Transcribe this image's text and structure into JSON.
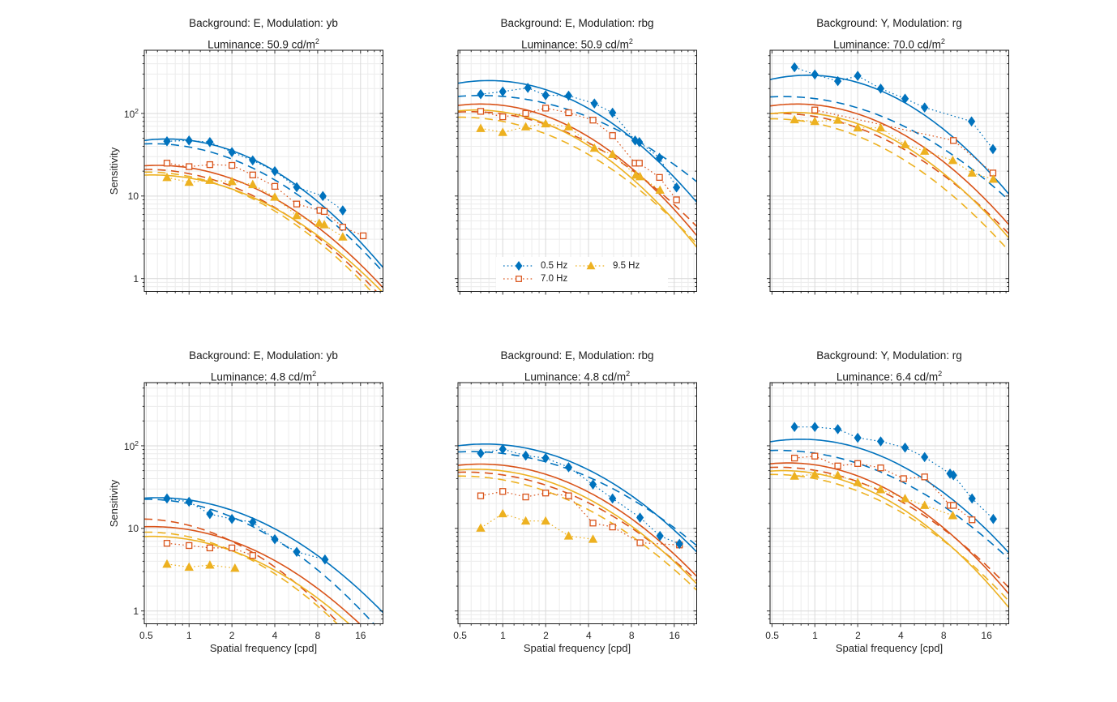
{
  "figure": {
    "background": "#ffffff",
    "unit_superscript": "2",
    "ylabel": "Sensitivity",
    "xlabel": "Spatial frequency [cpd]",
    "x_scale": "log",
    "y_scale": "log",
    "xlim": [
      0.485,
      23
    ],
    "ylim": [
      0.7,
      582
    ],
    "xticks": [
      0.5,
      1,
      2,
      4,
      8,
      16
    ],
    "yticks": [
      1,
      10,
      100
    ],
    "x_minor_gridlines": [
      0.6,
      0.7,
      0.8,
      0.9,
      1.2,
      1.4,
      1.6,
      1.8,
      2.5,
      3,
      3.5,
      5,
      6,
      7,
      9,
      10,
      12,
      14,
      18,
      20,
      22
    ],
    "y_minor_gridlines": [
      0.8,
      0.9,
      2,
      3,
      4,
      5,
      6,
      7,
      8,
      9,
      20,
      30,
      40,
      50,
      60,
      70,
      80,
      90,
      200,
      300,
      400,
      500
    ],
    "colors": {
      "blue": "#0072BD",
      "red": "#D95319",
      "yellow": "#EDB120",
      "grid_major": "#d9d9d9",
      "grid_minor": "#ececec",
      "axis": "#1a1a1a",
      "text": "#262626"
    },
    "legend": {
      "position": "inside bottom of top-middle subplot",
      "items": [
        {
          "label": "0.5 Hz",
          "marker": "diamond",
          "line": "dotted",
          "color": "#0072BD"
        },
        {
          "label": "7.0 Hz",
          "marker": "square",
          "line": "dotted",
          "color": "#D95319"
        },
        {
          "label": "9.5 Hz",
          "marker": "triangle",
          "line": "dotted",
          "color": "#EDB120"
        }
      ]
    }
  },
  "chart_data": [
    {
      "type": "line",
      "title": "Background: E, Modulation: yb",
      "luminance_label": "Luminance: 50.9 cd/m",
      "series": [
        {
          "name": "0.5 Hz",
          "color": "#0072BD",
          "marker": "diamond",
          "x": [
            0.7,
            1,
            1.4,
            2,
            2.8,
            4,
            5.7,
            8.7,
            12
          ],
          "y": [
            46,
            47,
            45,
            34,
            27,
            20,
            12.8,
            10,
            6.7
          ]
        },
        {
          "name": "7.0 Hz",
          "color": "#D95319",
          "marker": "square",
          "x": [
            0.7,
            1,
            1.4,
            2,
            2.8,
            4,
            5.7,
            8.3,
            8.9,
            12,
            16.7
          ],
          "y": [
            25,
            22.7,
            24,
            23.5,
            18,
            13.1,
            8,
            6.7,
            6.5,
            4.2,
            3.3
          ]
        },
        {
          "name": "9.5 Hz",
          "color": "#EDB120",
          "marker": "triangle",
          "x": [
            0.7,
            1,
            1.4,
            2,
            2.8,
            4,
            5.7,
            8.2,
            8.9,
            12
          ],
          "y": [
            16.8,
            14.7,
            15.5,
            15,
            13.8,
            9.7,
            5.8,
            4.7,
            4.5,
            3.2
          ]
        }
      ],
      "fits": [
        {
          "series": "0.5 Hz",
          "style": "solid",
          "color": "#0072BD",
          "peak_sensitivity": 49,
          "peak_frequency": 0.7,
          "log_sigma": 0.86
        },
        {
          "series": "0.5 Hz",
          "style": "dashed",
          "color": "#0072BD",
          "peak_sensitivity": 43,
          "peak_frequency": 0.55,
          "log_sigma": 0.92
        },
        {
          "series": "7.0 Hz",
          "style": "solid",
          "color": "#D95319",
          "peak_sensitivity": 23.5,
          "peak_frequency": 0.6,
          "log_sigma": 0.92
        },
        {
          "series": "7.0 Hz",
          "style": "dashed",
          "color": "#D95319",
          "peak_sensitivity": 21,
          "peak_frequency": 0.5,
          "log_sigma": 0.94
        },
        {
          "series": "9.5 Hz",
          "style": "solid",
          "color": "#EDB120",
          "peak_sensitivity": 18,
          "peak_frequency": 0.55,
          "log_sigma": 0.96
        },
        {
          "series": "9.5 Hz",
          "style": "dashed",
          "color": "#EDB120",
          "peak_sensitivity": 19.5,
          "peak_frequency": 0.5,
          "log_sigma": 0.93
        }
      ]
    },
    {
      "type": "line",
      "title": "Background: E, Modulation: rbg",
      "luminance_label": "Luminance: 50.9 cd/m",
      "series": [
        {
          "name": "0.5 Hz",
          "color": "#0072BD",
          "marker": "diamond",
          "x": [
            0.7,
            1,
            1.5,
            2,
            2.9,
            4.4,
            5.9,
            8.5,
            9.1,
            12.6,
            16.6
          ],
          "y": [
            171,
            184,
            204,
            166,
            164,
            132,
            102,
            47,
            45,
            29,
            12.7
          ]
        },
        {
          "name": "7.0 Hz",
          "color": "#D95319",
          "marker": "square",
          "x": [
            0.7,
            1,
            1.45,
            2,
            2.9,
            4.3,
            5.9,
            8.5,
            9.1,
            12.6,
            16.6
          ],
          "y": [
            106,
            91,
            100,
            116,
            102,
            83,
            54,
            25,
            25,
            16.8,
            9
          ]
        },
        {
          "name": "9.5 Hz",
          "color": "#EDB120",
          "marker": "triangle",
          "x": [
            0.7,
            1,
            1.45,
            2,
            2.9,
            4.4,
            5.9,
            8.6,
            9.2,
            12.7
          ],
          "y": [
            66,
            59,
            69,
            75,
            69,
            38,
            32,
            18,
            17.2,
            11.8
          ]
        }
      ],
      "fits": [
        {
          "series": "0.5 Hz",
          "style": "solid",
          "color": "#0072BD",
          "peak_sensitivity": 250,
          "peak_frequency": 0.8,
          "log_sigma": 0.85
        },
        {
          "series": "0.5 Hz",
          "style": "dashed",
          "color": "#0072BD",
          "peak_sensitivity": 165,
          "peak_frequency": 0.7,
          "log_sigma": 1.05
        },
        {
          "series": "7.0 Hz",
          "style": "solid",
          "color": "#D95319",
          "peak_sensitivity": 130,
          "peak_frequency": 0.7,
          "log_sigma": 0.85
        },
        {
          "series": "7.0 Hz",
          "style": "dashed",
          "color": "#D95319",
          "peak_sensitivity": 105,
          "peak_frequency": 0.6,
          "log_sigma": 0.95
        },
        {
          "series": "9.5 Hz",
          "style": "solid",
          "color": "#EDB120",
          "peak_sensitivity": 110,
          "peak_frequency": 0.65,
          "log_sigma": 0.85
        },
        {
          "series": "9.5 Hz",
          "style": "dashed",
          "color": "#EDB120",
          "peak_sensitivity": 90,
          "peak_frequency": 0.5,
          "log_sigma": 0.95
        }
      ]
    },
    {
      "type": "line",
      "title": "Background: Y, Modulation: rg",
      "luminance_label": "Luminance: 70.0 cd/m",
      "series": [
        {
          "name": "0.5 Hz",
          "color": "#0072BD",
          "marker": "diamond",
          "x": [
            0.72,
            1,
            1.45,
            2,
            2.9,
            4.3,
            5.9,
            12.6,
            17.8
          ],
          "y": [
            362,
            296,
            246,
            285,
            200,
            151,
            118,
            80,
            37
          ]
        },
        {
          "name": "7.0 Hz",
          "color": "#D95319",
          "marker": "square",
          "x": [
            1,
            9.4,
            17.8
          ],
          "y": [
            110,
            47,
            19
          ]
        },
        {
          "name": "9.5 Hz",
          "color": "#EDB120",
          "marker": "triangle",
          "x": [
            0.72,
            1,
            1.45,
            2,
            2.9,
            4.3,
            5.9,
            9.3,
            12.7,
            17.9
          ],
          "y": [
            84,
            80,
            83,
            67,
            67,
            42,
            35,
            27,
            19,
            16
          ]
        }
      ],
      "fits": [
        {
          "series": "0.5 Hz",
          "style": "solid",
          "color": "#0072BD",
          "peak_sensitivity": 290,
          "peak_frequency": 0.9,
          "log_sigma": 0.83
        },
        {
          "series": "0.5 Hz",
          "style": "dashed",
          "color": "#0072BD",
          "peak_sensitivity": 160,
          "peak_frequency": 0.6,
          "log_sigma": 1.0
        },
        {
          "series": "7.0 Hz",
          "style": "solid",
          "color": "#D95319",
          "peak_sensitivity": 130,
          "peak_frequency": 0.75,
          "log_sigma": 0.87
        },
        {
          "series": "7.0 Hz",
          "style": "dashed",
          "color": "#D95319",
          "peak_sensitivity": 100,
          "peak_frequency": 0.55,
          "log_sigma": 0.95
        },
        {
          "series": "9.5 Hz",
          "style": "solid",
          "color": "#EDB120",
          "peak_sensitivity": 103,
          "peak_frequency": 0.7,
          "log_sigma": 0.87
        },
        {
          "series": "9.5 Hz",
          "style": "dashed",
          "color": "#EDB120",
          "peak_sensitivity": 86,
          "peak_frequency": 0.5,
          "log_sigma": 0.93
        }
      ]
    },
    {
      "type": "line",
      "title": "Background: E, Modulation: yb",
      "luminance_label": "Luminance: 4.8 cd/m",
      "series": [
        {
          "name": "0.5 Hz",
          "color": "#0072BD",
          "marker": "diamond",
          "x": [
            0.7,
            1,
            1.4,
            2,
            2.8,
            4,
            5.7,
            9
          ],
          "y": [
            23,
            21,
            14.9,
            13,
            11.9,
            7.4,
            5.2,
            4.2
          ]
        },
        {
          "name": "7.0 Hz",
          "color": "#D95319",
          "marker": "square",
          "x": [
            0.7,
            1,
            1.4,
            2,
            2.8
          ],
          "y": [
            6.6,
            6.2,
            5.8,
            5.8,
            4.7
          ]
        },
        {
          "name": "9.5 Hz",
          "color": "#EDB120",
          "marker": "triangle",
          "x": [
            0.7,
            1,
            1.4,
            2.1
          ],
          "y": [
            3.7,
            3.4,
            3.6,
            3.3
          ]
        }
      ],
      "fits": [
        {
          "series": "0.5 Hz",
          "style": "solid",
          "color": "#0072BD",
          "peak_sensitivity": 23.5,
          "peak_frequency": 0.6,
          "log_sigma": 0.95
        },
        {
          "series": "0.5 Hz",
          "style": "dashed",
          "color": "#0072BD",
          "peak_sensitivity": 22.5,
          "peak_frequency": 0.5,
          "log_sigma": 0.92
        },
        {
          "series": "7.0 Hz",
          "style": "solid",
          "color": "#D95319",
          "peak_sensitivity": 10.5,
          "peak_frequency": 0.55,
          "log_sigma": 0.95
        },
        {
          "series": "7.0 Hz",
          "style": "dashed",
          "color": "#D95319",
          "peak_sensitivity": 13,
          "peak_frequency": 0.45,
          "log_sigma": 0.88
        },
        {
          "series": "9.5 Hz",
          "style": "solid",
          "color": "#EDB120",
          "peak_sensitivity": 8,
          "peak_frequency": 0.55,
          "log_sigma": 0.95
        },
        {
          "series": "9.5 Hz",
          "style": "dashed",
          "color": "#EDB120",
          "peak_sensitivity": 9,
          "peak_frequency": 0.5,
          "log_sigma": 0.9
        }
      ]
    },
    {
      "type": "line",
      "title": "Background: E, Modulation: rbg",
      "luminance_label": "Luminance: 4.8 cd/m",
      "series": [
        {
          "name": "0.5 Hz",
          "color": "#0072BD",
          "marker": "diamond",
          "x": [
            0.7,
            1,
            1.45,
            2,
            2.9,
            4.3,
            5.9,
            9.2,
            12.7,
            17.4
          ],
          "y": [
            81,
            91,
            76,
            71,
            55,
            34,
            23,
            13.5,
            8.1,
            6.5
          ]
        },
        {
          "name": "7.0 Hz",
          "color": "#D95319",
          "marker": "square",
          "x": [
            0.7,
            1,
            1.45,
            2,
            2.9,
            4.3,
            5.9,
            9.2,
            17.4
          ],
          "y": [
            24.8,
            28,
            24,
            26.8,
            24.8,
            11.6,
            10.4,
            6.7,
            6.3
          ]
        },
        {
          "name": "9.5 Hz",
          "color": "#EDB120",
          "marker": "triangle",
          "x": [
            0.7,
            1,
            1.45,
            2,
            2.9,
            4.3
          ],
          "y": [
            10.1,
            15.1,
            12.3,
            12.3,
            8.1,
            7.4
          ]
        }
      ],
      "fits": [
        {
          "series": "0.5 Hz",
          "style": "solid",
          "color": "#0072BD",
          "peak_sensitivity": 105,
          "peak_frequency": 0.75,
          "log_sigma": 0.92
        },
        {
          "series": "0.5 Hz",
          "style": "dashed",
          "color": "#0072BD",
          "peak_sensitivity": 85,
          "peak_frequency": 0.6,
          "log_sigma": 1.05
        },
        {
          "series": "7.0 Hz",
          "style": "solid",
          "color": "#D95319",
          "peak_sensitivity": 60,
          "peak_frequency": 0.7,
          "log_sigma": 0.92
        },
        {
          "series": "7.0 Hz",
          "style": "dashed",
          "color": "#D95319",
          "peak_sensitivity": 48,
          "peak_frequency": 0.55,
          "log_sigma": 1.0
        },
        {
          "series": "9.5 Hz",
          "style": "solid",
          "color": "#EDB120",
          "peak_sensitivity": 52,
          "peak_frequency": 0.65,
          "log_sigma": 0.93
        },
        {
          "series": "9.5 Hz",
          "style": "dashed",
          "color": "#EDB120",
          "peak_sensitivity": 43,
          "peak_frequency": 0.5,
          "log_sigma": 1.0
        }
      ]
    },
    {
      "type": "line",
      "title": "Background: Y, Modulation: rg",
      "luminance_label": "Luminance: 6.4 cd/m",
      "series": [
        {
          "name": "0.5 Hz",
          "color": "#0072BD",
          "marker": "diamond",
          "x": [
            0.72,
            1,
            1.45,
            2,
            2.9,
            4.3,
            5.9,
            8.9,
            9.4,
            12.7,
            17.9
          ],
          "y": [
            169,
            169,
            159,
            125,
            113,
            95,
            73,
            46,
            44,
            23,
            13
          ]
        },
        {
          "name": "7.0 Hz",
          "color": "#D95319",
          "marker": "square",
          "x": [
            0.72,
            1,
            1.45,
            2,
            2.9,
            4.2,
            5.9,
            8.9,
            9.4,
            12.7
          ],
          "y": [
            71,
            75,
            57,
            61,
            54,
            40,
            42,
            19,
            19,
            12.7
          ]
        },
        {
          "name": "9.5 Hz",
          "color": "#EDB120",
          "marker": "triangle",
          "x": [
            0.72,
            1,
            1.45,
            2,
            2.9,
            4.3,
            5.9,
            9.3
          ],
          "y": [
            43,
            45,
            44,
            36,
            29.5,
            23,
            19,
            14.3
          ]
        }
      ],
      "fits": [
        {
          "series": "0.5 Hz",
          "style": "solid",
          "color": "#0072BD",
          "peak_sensitivity": 120,
          "peak_frequency": 0.8,
          "log_sigma": 0.88
        },
        {
          "series": "0.5 Hz",
          "style": "dashed",
          "color": "#0072BD",
          "peak_sensitivity": 88,
          "peak_frequency": 0.55,
          "log_sigma": 1.0
        },
        {
          "series": "7.0 Hz",
          "style": "solid",
          "color": "#D95319",
          "peak_sensitivity": 62,
          "peak_frequency": 0.65,
          "log_sigma": 0.87
        },
        {
          "series": "7.0 Hz",
          "style": "dashed",
          "color": "#D95319",
          "peak_sensitivity": 55,
          "peak_frequency": 0.55,
          "log_sigma": 0.95
        },
        {
          "series": "9.5 Hz",
          "style": "solid",
          "color": "#EDB120",
          "peak_sensitivity": 50,
          "peak_frequency": 0.6,
          "log_sigma": 0.87
        },
        {
          "series": "9.5 Hz",
          "style": "dashed",
          "color": "#EDB120",
          "peak_sensitivity": 45,
          "peak_frequency": 0.5,
          "log_sigma": 0.95
        }
      ]
    }
  ]
}
